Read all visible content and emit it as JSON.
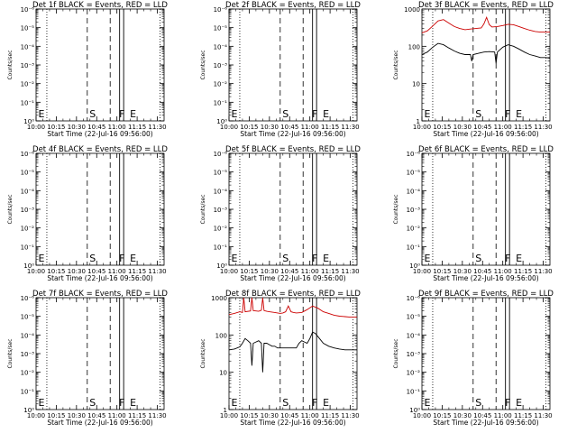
{
  "chart_data": {
    "type": "line",
    "x_tick_labels": [
      "10:00",
      "10:15",
      "10:30",
      "10:45",
      "11:00",
      "11:15",
      "11:30"
    ],
    "xlim_minutes_after_10_00": [
      0,
      95
    ],
    "dotted_lines_minutes": [
      8,
      92
    ],
    "dashed_lines_minutes": [
      38,
      55
    ],
    "solid_lines_minutes": [
      62,
      65
    ],
    "markers": [
      {
        "letter": "E",
        "minute": 1
      },
      {
        "letter": "S",
        "minute": 39
      },
      {
        "letter": "F",
        "minute": 61
      },
      {
        "letter": "E",
        "minute": 69
      }
    ],
    "panels": [
      {
        "title": "Det 1f BLACK = Events, RED = LLD",
        "ylabel": "Counts/sec",
        "xlabel": "Start Time (22-Jul-16 09:56:00)",
        "y_scale": "log",
        "y_tick_labels": [
          "10⁰",
          "10⁻¹",
          "10⁻²",
          "10⁻³",
          "10⁻⁴",
          "10⁻⁵",
          "10⁻⁶"
        ],
        "series": []
      },
      {
        "title": "Det 2f BLACK = Events, RED = LLD",
        "ylabel": "Counts/sec",
        "xlabel": "Start Time (22-Jul-16 09:56:00)",
        "y_scale": "log",
        "y_tick_labels": [
          "10⁰",
          "10⁻¹",
          "10⁻²",
          "10⁻³",
          "10⁻⁴",
          "10⁻⁵",
          "10⁻⁶"
        ],
        "series": []
      },
      {
        "title": "Det 3f BLACK = Events, RED = LLD",
        "ylabel": "Counts/sec",
        "xlabel": "Start Time (22-Jul-16 09:56:00)",
        "y_scale": "log",
        "ylim": [
          1,
          1000
        ],
        "y_tick_labels": [
          "1",
          "10",
          "100",
          "1000"
        ],
        "series": [
          {
            "color": "#cc0000",
            "minutes": [
              0,
              4,
              8,
              12,
              16,
              20,
              24,
              28,
              32,
              36,
              40,
              44,
              46,
              48,
              50,
              52,
              56,
              60,
              64,
              68,
              72,
              76,
              80,
              84,
              88,
              92,
              95
            ],
            "values": [
              230,
              260,
              350,
              480,
              520,
              420,
              340,
              300,
              280,
              290,
              300,
              310,
              400,
              600,
              380,
              330,
              340,
              360,
              390,
              380,
              340,
              300,
              270,
              250,
              240,
              240,
              240
            ]
          },
          {
            "color": "#000000",
            "minutes": [
              0,
              4,
              8,
              12,
              16,
              20,
              24,
              28,
              32,
              36,
              37,
              38,
              42,
              46,
              50,
              54,
              55,
              56,
              60,
              64,
              68,
              72,
              76,
              80,
              84,
              88,
              92,
              95
            ],
            "values": [
              60,
              70,
              95,
              120,
              110,
              90,
              75,
              65,
              60,
              60,
              40,
              60,
              65,
              70,
              72,
              70,
              35,
              70,
              95,
              110,
              100,
              85,
              70,
              60,
              55,
              50,
              50,
              48
            ]
          }
        ]
      },
      {
        "title": "Det 4f BLACK = Events, RED = LLD",
        "ylabel": "Counts/sec",
        "xlabel": "Start Time (22-Jul-16 09:56:00)",
        "y_scale": "log",
        "y_tick_labels": [
          "10⁰",
          "10⁻¹",
          "10⁻²",
          "10⁻³",
          "10⁻⁴",
          "10⁻⁵",
          "10⁻⁶"
        ],
        "series": []
      },
      {
        "title": "Det 5f BLACK = Events, RED = LLD",
        "ylabel": "Counts/sec",
        "xlabel": "Start Time (22-Jul-16 09:56:00)",
        "y_scale": "log",
        "y_tick_labels": [
          "10⁰",
          "10⁻¹",
          "10⁻²",
          "10⁻³",
          "10⁻⁴",
          "10⁻⁵",
          "10⁻⁶"
        ],
        "series": []
      },
      {
        "title": "Det 6f BLACK = Events, RED = LLD",
        "ylabel": "Counts/sec",
        "xlabel": "Start Time (22-Jul-16 09:56:00)",
        "y_scale": "log",
        "y_tick_labels": [
          "10⁰",
          "10⁻¹",
          "10⁻²",
          "10⁻³",
          "10⁻⁴",
          "10⁻⁵",
          "10⁻⁶"
        ],
        "series": []
      },
      {
        "title": "Det 7f BLACK = Events, RED = LLD",
        "ylabel": "Counts/sec",
        "xlabel": "Start Time (22-Jul-16 09:56:00)",
        "y_scale": "log",
        "y_tick_labels": [
          "10⁰",
          "10⁻¹",
          "10⁻²",
          "10⁻³",
          "10⁻⁴",
          "10⁻⁵",
          "10⁻⁶"
        ],
        "series": []
      },
      {
        "title": "Det 8f BLACK = Events, RED = LLD",
        "ylabel": "Counts/sec",
        "xlabel": "Start Time (22-Jul-16 09:56:00)",
        "y_scale": "log",
        "ylim": [
          1,
          1000
        ],
        "y_tick_labels": [
          "1",
          "10",
          "100",
          "1000"
        ],
        "series": [
          {
            "color": "#cc0000",
            "minutes": [
              0,
              4,
              8,
              10,
              11,
              12,
              16,
              17,
              18,
              22,
              24,
              25,
              26,
              28,
              30,
              34,
              38,
              40,
              42,
              44,
              46,
              48,
              50,
              54,
              58,
              62,
              66,
              70,
              74,
              78,
              82,
              86,
              90,
              95
            ],
            "values": [
              350,
              380,
              420,
              400,
              1000,
              420,
              440,
              1000,
              450,
              430,
              460,
              1000,
              450,
              430,
              420,
              400,
              380,
              390,
              420,
              600,
              420,
              400,
              390,
              400,
              480,
              600,
              520,
              420,
              380,
              340,
              320,
              310,
              300,
              300
            ]
          },
          {
            "color": "#000000",
            "minutes": [
              0,
              4,
              8,
              10,
              12,
              14,
              16,
              17,
              18,
              20,
              22,
              24,
              25,
              26,
              28,
              30,
              32,
              34,
              36,
              50,
              52,
              54,
              56,
              58,
              60,
              62,
              64,
              66,
              70,
              74,
              78,
              82,
              86,
              90,
              95
            ],
            "values": [
              40,
              42,
              48,
              60,
              80,
              70,
              60,
              15,
              60,
              65,
              70,
              60,
              10,
              60,
              60,
              55,
              50,
              50,
              45,
              45,
              60,
              70,
              65,
              60,
              80,
              120,
              110,
              90,
              60,
              50,
              45,
              42,
              40,
              40,
              40
            ]
          }
        ]
      },
      {
        "title": "Det 9f BLACK = Events, RED = LLD",
        "ylabel": "Counts/sec",
        "xlabel": "Start Time (22-Jul-16 09:56:00)",
        "y_scale": "log",
        "y_tick_labels": [
          "10⁰",
          "10⁻¹",
          "10⁻²",
          "10⁻³",
          "10⁻⁴",
          "10⁻⁵",
          "10⁻⁶"
        ],
        "series": []
      }
    ]
  }
}
